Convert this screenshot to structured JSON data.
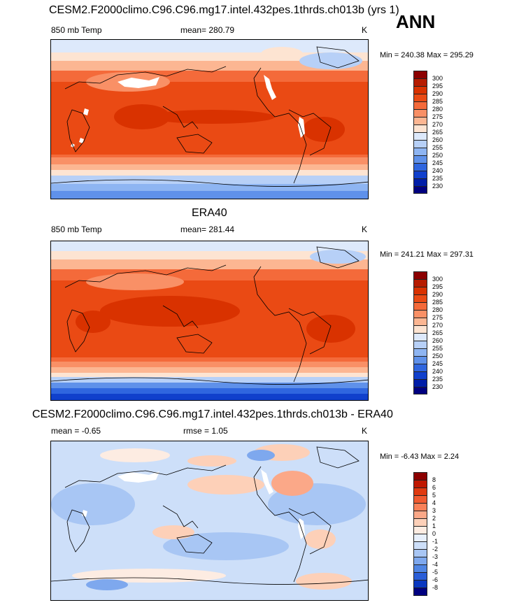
{
  "ann": "ANN",
  "panels": [
    {
      "title": "CESM2.F2000climo.C96.C96.mg17.intel.432pes.1thrds.ch013b (yrs 1)",
      "left": "850 mb Temp",
      "stat": "mean= 280.79",
      "units": "K",
      "minmax": "Min = 240.38 Max = 295.29",
      "colorbar": {
        "labels": [
          "300",
          "295",
          "290",
          "285",
          "280",
          "275",
          "270",
          "265",
          "260",
          "255",
          "250",
          "245",
          "240",
          "235",
          "230"
        ],
        "colors": [
          "#8c0000",
          "#b61c00",
          "#d93200",
          "#ea4a14",
          "#f46a3a",
          "#f99066",
          "#fcb692",
          "#fde4d2",
          "#dde9fb",
          "#b7d0f7",
          "#8eb5f2",
          "#5f91ea",
          "#2f66df",
          "#1040cc",
          "#001ea8",
          "#000080"
        ]
      }
    },
    {
      "title": "ERA40",
      "left": "850 mb Temp",
      "stat": "mean= 281.44",
      "units": "K",
      "minmax": "Min = 241.21 Max = 297.31",
      "colorbar": {
        "labels": [
          "300",
          "295",
          "290",
          "285",
          "280",
          "275",
          "270",
          "265",
          "260",
          "255",
          "250",
          "245",
          "240",
          "235",
          "230"
        ],
        "colors": [
          "#8c0000",
          "#b61c00",
          "#d93200",
          "#ea4a14",
          "#f46a3a",
          "#f99066",
          "#fcb692",
          "#fde4d2",
          "#dde9fb",
          "#b7d0f7",
          "#8eb5f2",
          "#5f91ea",
          "#2f66df",
          "#1040cc",
          "#001ea8",
          "#000080"
        ]
      }
    },
    {
      "title": "CESM2.F2000climo.C96.C96.mg17.intel.432pes.1thrds.ch013b - ERA40",
      "left": "mean = -0.65",
      "stat": "rmse = 1.05",
      "units": "K",
      "minmax": "Min = -6.43 Max = 2.24",
      "colorbar": {
        "labels": [
          "8",
          "6",
          "5",
          "4",
          "3",
          "2",
          "1",
          "0",
          "-1",
          "-2",
          "-3",
          "-4",
          "-5",
          "-6",
          "-8"
        ],
        "colors": [
          "#8c0000",
          "#c01800",
          "#e03a10",
          "#f05a30",
          "#f88058",
          "#fba888",
          "#fdd0b8",
          "#fdece2",
          "#e8f0fc",
          "#cddff9",
          "#a8c6f4",
          "#7ea8ee",
          "#4f85e4",
          "#2a5ed8",
          "#0a38c0",
          "#000080"
        ]
      }
    }
  ]
}
